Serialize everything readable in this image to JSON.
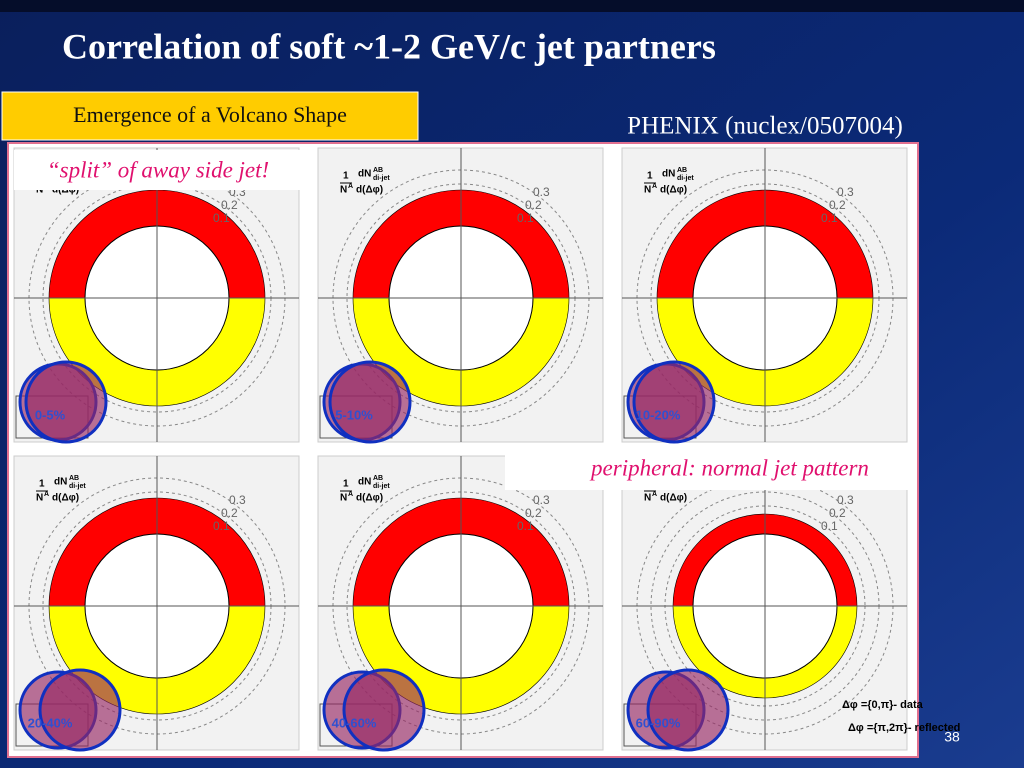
{
  "header": {
    "title": "Correlation of soft ~1-2 GeV/c jet partners"
  },
  "subtitle_box": "Emergence of a Volcano Shape",
  "reference": "PHENIX (nuclex/0507004)",
  "callouts": {
    "split": "“split” of away side jet!",
    "peripheral": "peripheral: normal jet pattern"
  },
  "panels": [
    {
      "label": "0-5%"
    },
    {
      "label": "5-10%"
    },
    {
      "label": "10-20%"
    },
    {
      "label": "20-40%"
    },
    {
      "label": "40-60%"
    },
    {
      "label": "60-90%"
    }
  ],
  "ring_labels": [
    "0.3",
    "0.2",
    "0.1"
  ],
  "axis_label": {
    "one": "1",
    "n": "N",
    "a": "A",
    "dn": "dN",
    "ab": "AB",
    "dijet": "di-jet",
    "dphi": "d(Δφ)"
  },
  "legend": [
    "Δφ ={0,π}- data",
    "Δφ ={π,2π}- reflected"
  ],
  "page_number": "38"
}
